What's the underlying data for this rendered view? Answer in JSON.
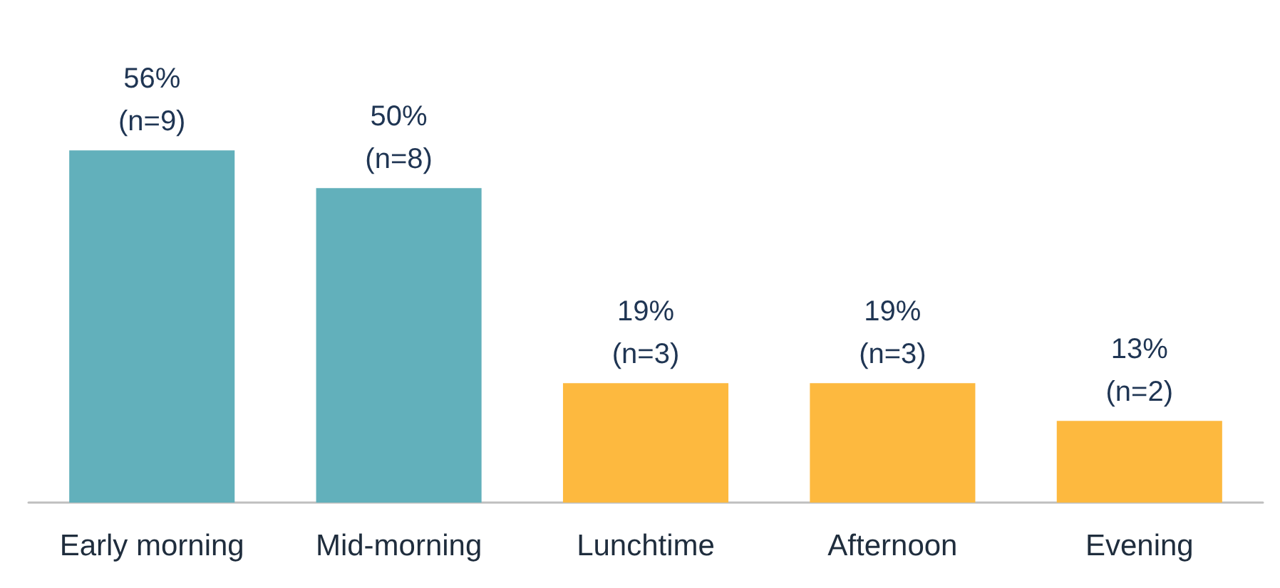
{
  "chart_data": {
    "type": "bar",
    "categories": [
      "Early morning",
      "Mid-morning",
      "Lunchtime",
      "Afternoon",
      "Evening"
    ],
    "values": [
      56,
      50,
      19,
      19,
      13
    ],
    "colors": [
      "#62b0bb",
      "#62b0bb",
      "#fdb93f",
      "#fdb93f",
      "#fdb93f"
    ],
    "value_labels": [
      "56%\n(n=9)",
      "50%\n(n=8)",
      "19%\n(n=3)",
      "19%\n(n=3)",
      "13%\n(n=2)"
    ]
  }
}
